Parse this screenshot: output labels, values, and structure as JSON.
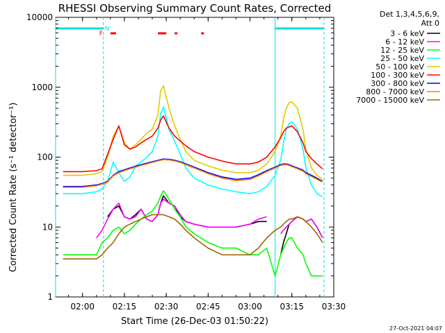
{
  "chart_data": {
    "type": "line",
    "title": "RHESSI Observing Summary Count Rates, Corrected",
    "xlabel": "Start Time (26-Dec-03 01:50:22)",
    "ylabel": "Corrected Count Rate (s⁻¹ detector⁻¹)",
    "y_scale": "log",
    "ylim": [
      1,
      10000
    ],
    "xlim": [
      "01:50:22",
      "03:30:00"
    ],
    "x_ticks": [
      "02:00",
      "02:15",
      "02:30",
      "02:45",
      "03:00",
      "03:15",
      "03:30"
    ],
    "y_ticks": [
      "1",
      "10",
      "100",
      "1000",
      "10000"
    ],
    "legend_header": [
      "Det 1,3,4,5,6,9,",
      "Att 0"
    ],
    "legend_position": "right, outside plot",
    "footer_timestamp": "27-Oct-2021 04:07",
    "markers": {
      "N_label": "N",
      "F_label": "F",
      "night_bars": [
        [
          "01:50:22",
          "02:07:30"
        ],
        [
          "03:09:00",
          "03:26:30"
        ]
      ],
      "flare_segments": [
        [
          "02:10:00",
          "02:12:00"
        ],
        [
          "02:27:00",
          "02:30:00"
        ],
        [
          "02:33:00",
          "02:34:00"
        ],
        [
          "02:42:30",
          "02:43:30"
        ]
      ],
      "vertical_lines": [
        "01:50:22",
        "02:07:30",
        "03:09:00",
        "03:26:30"
      ]
    },
    "x": [
      "01:53",
      "02:00",
      "02:05",
      "02:07",
      "02:09",
      "02:11",
      "02:13",
      "02:15",
      "02:17",
      "02:19",
      "02:21",
      "02:23",
      "02:25",
      "02:27",
      "02:28",
      "02:29",
      "02:31",
      "02:33",
      "02:35",
      "02:37",
      "02:40",
      "02:45",
      "02:50",
      "02:55",
      "03:00",
      "03:03",
      "03:06",
      "03:09",
      "03:11",
      "03:12",
      "03:13",
      "03:14",
      "03:15",
      "03:17",
      "03:19",
      "03:20",
      "03:22",
      "03:24",
      "03:26"
    ],
    "series": [
      {
        "name": "3 - 6 keV",
        "color": "#000000",
        "values": [
          null,
          null,
          null,
          null,
          14,
          18,
          20,
          14,
          13,
          15,
          18,
          13,
          12,
          15,
          22,
          28,
          22,
          20,
          14,
          12,
          11,
          10,
          10,
          10,
          11,
          12,
          12,
          null,
          4,
          6,
          8,
          11,
          12,
          14,
          13,
          12,
          13,
          10,
          7
        ]
      },
      {
        "name": "6 - 12 keV",
        "color": "#ff00ff",
        "values": [
          null,
          null,
          7,
          9,
          13,
          18,
          22,
          14,
          13,
          14,
          18,
          13,
          12,
          15,
          22,
          25,
          22,
          20,
          15,
          12,
          11,
          10,
          10,
          10,
          11,
          13,
          14,
          null,
          8,
          9,
          10,
          11,
          12,
          14,
          13,
          12,
          13,
          10,
          7
        ]
      },
      {
        "name": "12 - 25 keV",
        "color": "#00ff00",
        "values": [
          4,
          4,
          4,
          6,
          7,
          9,
          10,
          8,
          9,
          11,
          13,
          15,
          17,
          22,
          28,
          33,
          25,
          18,
          14,
          10,
          8,
          6,
          5,
          5,
          4,
          4,
          5,
          2,
          4,
          5,
          6,
          7,
          7,
          5,
          4,
          3,
          2,
          2,
          2
        ]
      },
      {
        "name": "25 - 50 keV",
        "color": "#00ffff",
        "values": [
          30,
          30,
          32,
          35,
          45,
          85,
          60,
          45,
          52,
          75,
          85,
          100,
          120,
          200,
          420,
          520,
          250,
          170,
          110,
          70,
          50,
          40,
          35,
          32,
          30,
          32,
          38,
          55,
          90,
          160,
          250,
          300,
          320,
          250,
          130,
          70,
          40,
          30,
          27
        ]
      },
      {
        "name": "50 - 100 keV",
        "color": "#ddcc00",
        "values": [
          55,
          55,
          58,
          62,
          100,
          200,
          280,
          160,
          130,
          150,
          180,
          220,
          250,
          400,
          900,
          1050,
          500,
          280,
          180,
          120,
          90,
          75,
          65,
          60,
          60,
          65,
          80,
          120,
          200,
          350,
          500,
          600,
          620,
          500,
          250,
          130,
          70,
          55,
          48
        ]
      },
      {
        "name": "100 - 300 keV",
        "color": "#ff0000",
        "values": [
          62,
          62,
          64,
          68,
          110,
          180,
          280,
          150,
          130,
          140,
          160,
          180,
          200,
          260,
          340,
          390,
          260,
          200,
          170,
          145,
          120,
          100,
          88,
          80,
          80,
          85,
          100,
          140,
          190,
          230,
          260,
          270,
          280,
          230,
          160,
          120,
          95,
          80,
          68
        ]
      },
      {
        "name": "300 - 800 keV",
        "color": "#0000ff",
        "values": [
          38,
          38,
          40,
          42,
          45,
          55,
          62,
          66,
          70,
          74,
          78,
          82,
          86,
          90,
          92,
          94,
          93,
          90,
          86,
          80,
          72,
          60,
          52,
          48,
          50,
          56,
          64,
          72,
          78,
          80,
          80,
          78,
          75,
          70,
          65,
          60,
          55,
          50,
          45
        ]
      },
      {
        "name": "800 - 7000 keV",
        "color": "#ff8000",
        "values": [
          37,
          37,
          39,
          41,
          44,
          54,
          60,
          64,
          68,
          72,
          76,
          80,
          84,
          88,
          90,
          92,
          91,
          88,
          84,
          78,
          70,
          58,
          50,
          46,
          48,
          54,
          62,
          70,
          76,
          78,
          78,
          76,
          73,
          68,
          63,
          58,
          53,
          48,
          44
        ]
      },
      {
        "name": "7000 - 15000 keV",
        "color": "#996600",
        "values": [
          3.5,
          3.5,
          3.5,
          4,
          5,
          6,
          8,
          10,
          11,
          12,
          13,
          14,
          15,
          15,
          15,
          15,
          14,
          13,
          11,
          9,
          7,
          5,
          4,
          4,
          4,
          5,
          7,
          9,
          10,
          11,
          12,
          13,
          13,
          14,
          13,
          12,
          10,
          8,
          6
        ]
      }
    ]
  }
}
